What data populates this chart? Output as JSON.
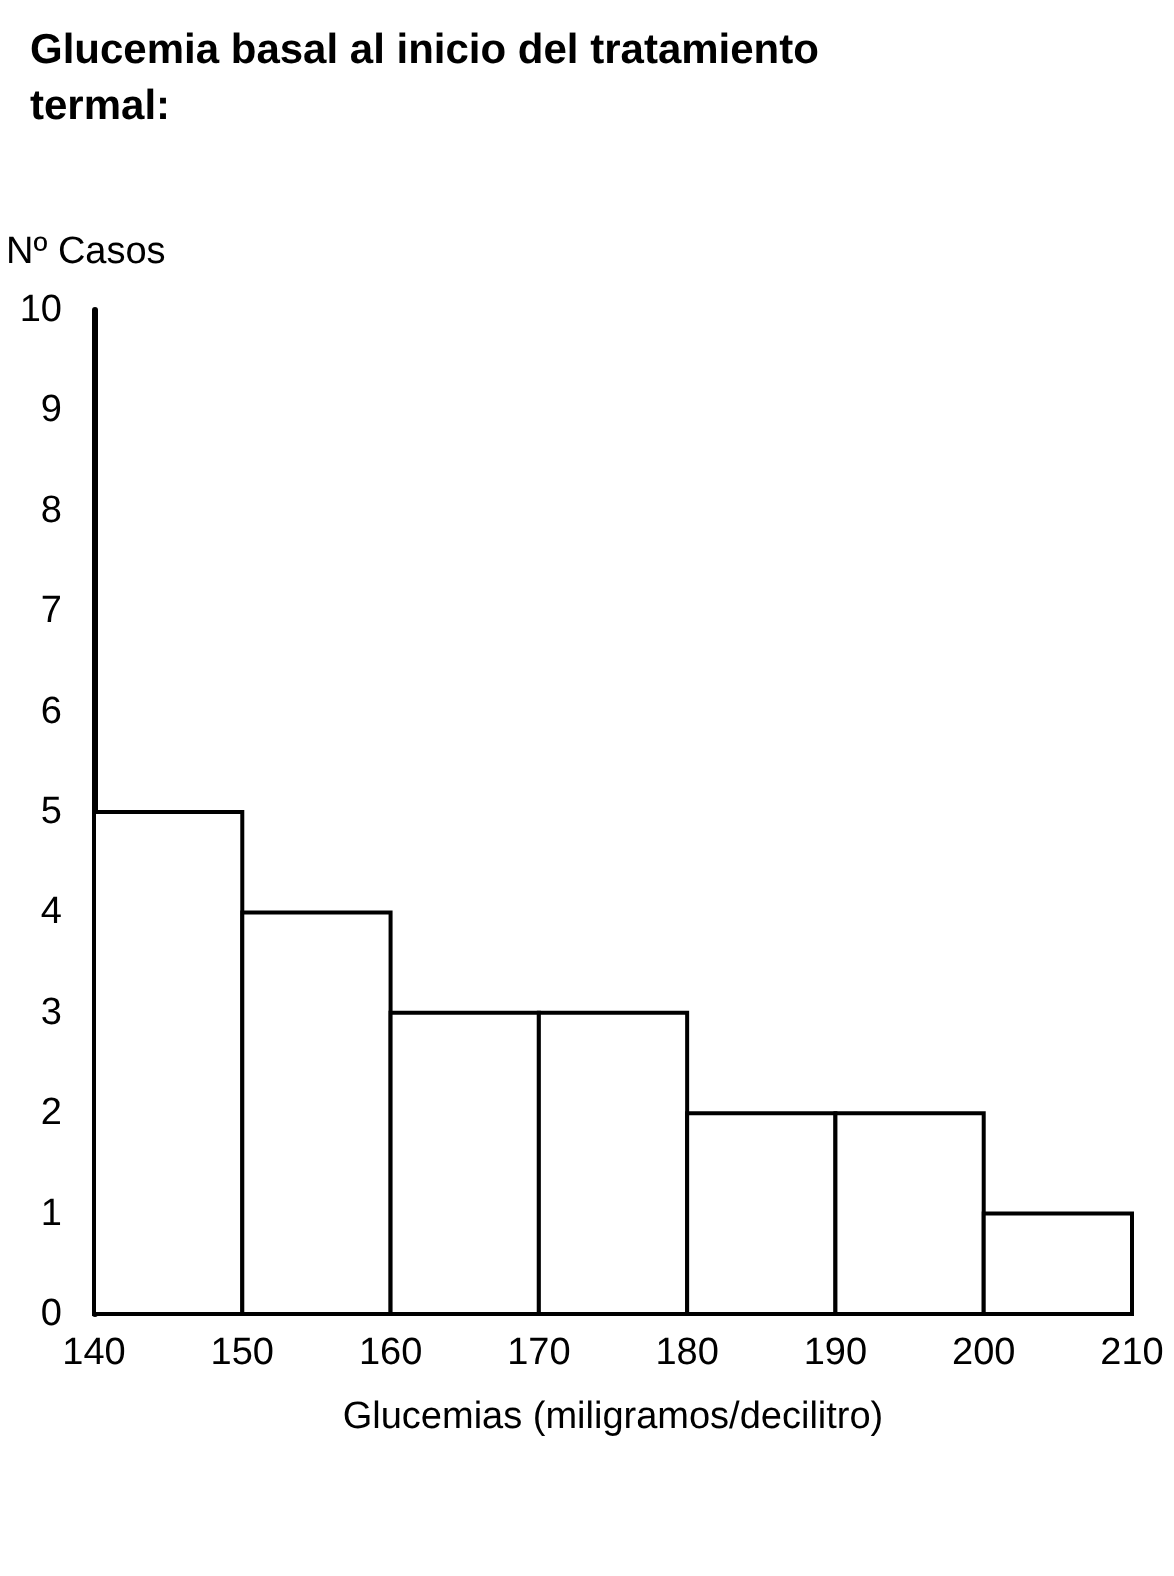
{
  "chart_data": {
    "type": "histogram",
    "title": "Glucemia basal al inicio del tratamiento termal:",
    "xlabel": "Glucemias (miligramos/decilitro)",
    "ylabel": "Nº Casos",
    "bins": [
      140,
      150,
      160,
      170,
      180,
      190,
      200,
      210
    ],
    "values": [
      5,
      4,
      3,
      3,
      2,
      2,
      1
    ],
    "color": "#ffffff",
    "xlim": [
      140,
      210
    ],
    "xticks": [
      140,
      150,
      160,
      170,
      180,
      190,
      200,
      210
    ],
    "ylim": [
      0,
      10
    ],
    "yticks": [
      0,
      1,
      2,
      3,
      4,
      5,
      6,
      7,
      8,
      9,
      10
    ]
  }
}
